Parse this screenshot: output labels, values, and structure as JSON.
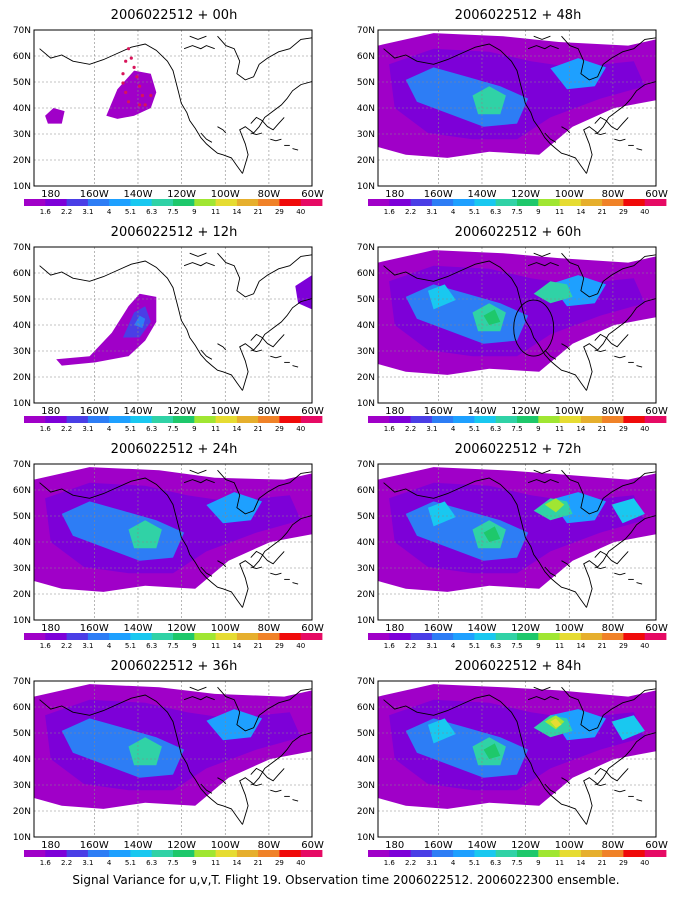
{
  "colorbar": {
    "labels": [
      "1.6",
      "2.2",
      "3.1",
      "4",
      "5.1",
      "6.3",
      "7.5",
      "9",
      "11",
      "14",
      "21",
      "29",
      "40"
    ],
    "colors": [
      "#a000c8",
      "#7d00d8",
      "#4a3ee6",
      "#2d7df5",
      "#1ea0ff",
      "#19c8f0",
      "#30d2a6",
      "#1ec86b",
      "#a0e632",
      "#e6dc32",
      "#e6af2d",
      "#f08228",
      "#f00a0a",
      "#e60a64"
    ]
  },
  "axes": {
    "lat_labels": [
      "70N",
      "60N",
      "50N",
      "40N",
      "30N",
      "20N",
      "10N"
    ],
    "lon_labels": [
      "180",
      "160W",
      "140W",
      "120W",
      "100W",
      "80W",
      "60W"
    ]
  },
  "panels": [
    {
      "title": "2006022512 + 00h",
      "level": 0
    },
    {
      "title": "2006022512 + 48h",
      "level": 4
    },
    {
      "title": "2006022512 + 12h",
      "level": 1
    },
    {
      "title": "2006022512 + 60h",
      "level": 5
    },
    {
      "title": "2006022512 + 24h",
      "level": 2
    },
    {
      "title": "2006022512 + 72h",
      "level": 6
    },
    {
      "title": "2006022512 + 36h",
      "level": 3
    },
    {
      "title": "2006022512 + 84h",
      "level": 7
    }
  ],
  "caption": "Signal Variance for u,v,T. Flight 19. Observation time 2006022512. 2006022300 ensemble."
}
